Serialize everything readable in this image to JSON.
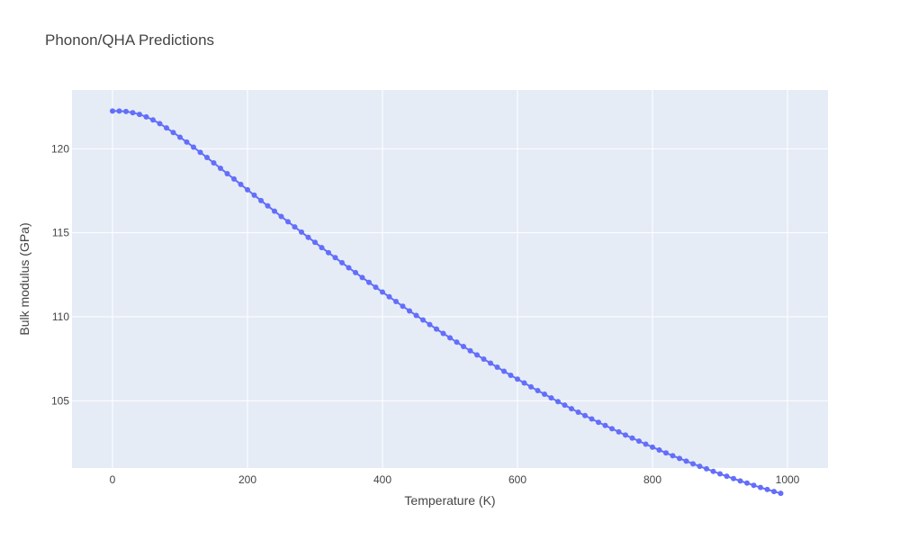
{
  "chart_data": {
    "type": "scatter",
    "mode": "lines+markers",
    "title": "Phonon/QHA Predictions",
    "xlabel": "Temperature (K)",
    "ylabel": "Bulk modulus (GPa)",
    "xlim": [
      -60,
      1060
    ],
    "ylim": [
      101,
      123.5
    ],
    "xticks": [
      0,
      200,
      400,
      600,
      800,
      1000
    ],
    "yticks": [
      105,
      110,
      115,
      120
    ],
    "xtick_labels": [
      "0",
      "200",
      "400",
      "600",
      "800",
      "1000"
    ],
    "ytick_labels": [
      "105",
      "110",
      "115",
      "120"
    ],
    "grid": true,
    "legend": "none",
    "colors": {
      "series": "#636efa",
      "plot_bg": "#e5ecf6",
      "grid": "#ffffff",
      "text": "#444444"
    },
    "series": [
      {
        "x": [
          0,
          10,
          20,
          30,
          40,
          50,
          60,
          70,
          80,
          90,
          100,
          110,
          120,
          130,
          140,
          150,
          160,
          170,
          180,
          190,
          200,
          210,
          220,
          230,
          240,
          250,
          260,
          270,
          280,
          290,
          300,
          310,
          320,
          330,
          340,
          350,
          360,
          370,
          380,
          390,
          400,
          410,
          420,
          430,
          440,
          450,
          460,
          470,
          480,
          490,
          500,
          510,
          520,
          530,
          540,
          550,
          560,
          570,
          580,
          590,
          600,
          610,
          620,
          630,
          640,
          650,
          660,
          670,
          680,
          690,
          700,
          710,
          720,
          730,
          740,
          750,
          760,
          770,
          780,
          790,
          800,
          810,
          820,
          830,
          840,
          850,
          860,
          870,
          880,
          890,
          900,
          910,
          920,
          930,
          940,
          950,
          960,
          970,
          980,
          990
        ],
        "y": [
          122.25,
          122.25,
          122.22,
          122.15,
          122.05,
          121.9,
          121.72,
          121.5,
          121.24,
          120.97,
          120.69,
          120.4,
          120.1,
          119.79,
          119.48,
          119.16,
          118.84,
          118.52,
          118.2,
          117.88,
          117.56,
          117.24,
          116.92,
          116.6,
          116.29,
          115.97,
          115.66,
          115.35,
          115.04,
          114.73,
          114.43,
          114.12,
          113.82,
          113.52,
          113.22,
          112.92,
          112.63,
          112.34,
          112.05,
          111.76,
          111.47,
          111.19,
          110.91,
          110.63,
          110.35,
          110.08,
          109.81,
          109.54,
          109.27,
          109.01,
          108.75,
          108.49,
          108.23,
          107.98,
          107.73,
          107.48,
          107.24,
          107,
          106.76,
          106.52,
          106.29,
          106.06,
          105.83,
          105.61,
          105.39,
          105.17,
          104.95,
          104.74,
          104.53,
          104.32,
          104.12,
          103.92,
          103.72,
          103.53,
          103.34,
          103.15,
          102.96,
          102.78,
          102.6,
          102.42,
          102.24,
          102.07,
          101.9,
          101.73,
          101.57,
          101.41,
          101.25,
          101.1,
          100.95,
          100.8,
          100.65,
          100.51,
          100.37,
          100.23,
          100.1,
          99.97,
          99.84,
          99.72,
          99.6,
          99.49
        ]
      }
    ]
  }
}
